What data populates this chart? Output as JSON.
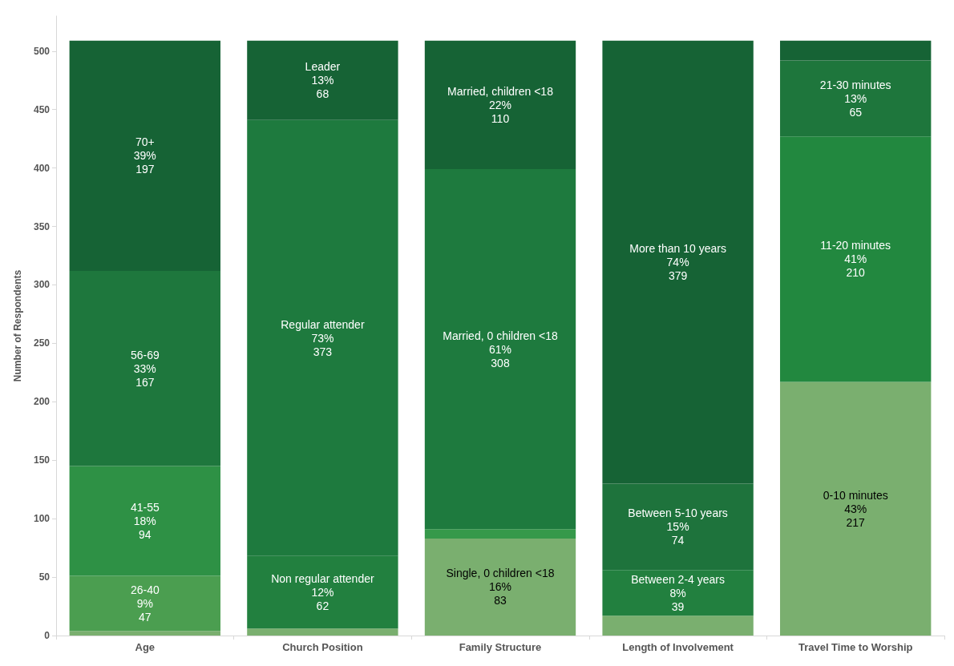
{
  "chart_data": {
    "type": "bar",
    "stacked": true,
    "ylabel": "Number of Respondents",
    "categories": [
      "Age",
      "Church Position",
      "Family Structure",
      "Length of Involvement",
      "Travel Time to Worship"
    ],
    "ylim": [
      0,
      530
    ],
    "yticks": [
      0,
      50,
      100,
      150,
      200,
      250,
      300,
      350,
      400,
      450,
      500
    ],
    "grid": false,
    "series": [
      {
        "values": [
          4,
          6,
          83,
          17,
          217
        ],
        "colors": [
          "#7aaf6f",
          "#7aaf6f",
          "#7aaf6f",
          "#7aaf6f",
          "#7aaf6f"
        ],
        "value_labels": [
          null,
          null,
          "Single, 0 children <18\n16%\n83",
          null,
          "0-10 minutes\n43%\n217"
        ]
      },
      {
        "values": [
          47,
          62,
          8,
          39,
          210
        ],
        "colors": [
          "#4b9e50",
          "#22803f",
          "#36994a",
          "#22803f",
          "#22883f"
        ],
        "value_labels": [
          "26-40\n9%\n47",
          "Non regular attender\n12%\n62",
          null,
          "Between 2-4 years\n8%\n39",
          "11-20 minutes\n41%\n210"
        ]
      },
      {
        "values": [
          94,
          373,
          308,
          74,
          65
        ],
        "colors": [
          "#2e9145",
          "#1e7a3e",
          "#1e7a3e",
          "#1e733c",
          "#1e763c"
        ],
        "value_labels": [
          "41-55\n18%\n94",
          "Regular attender\n73%\n373",
          "Married, 0 children <18\n61%\n308",
          "Between 5-10 years\n15%\n74",
          "21-30 minutes\n13%\n65"
        ]
      },
      {
        "values": [
          167,
          68,
          110,
          379,
          17
        ],
        "colors": [
          "#1e773d",
          "#166335",
          "#166335",
          "#166335",
          "#166335"
        ],
        "value_labels": [
          "56-69\n33%\n167",
          "Leader\n13%\n68",
          "Married, children <18\n22%\n110",
          "More than 10 years\n74%\n379",
          null
        ]
      },
      {
        "values": [
          197,
          null,
          null,
          null,
          null
        ],
        "colors": [
          "#166335",
          "#166335",
          "#166335",
          "#166335",
          "#166335"
        ],
        "value_labels": [
          "70+\n39%\n197",
          null,
          null,
          null,
          null
        ]
      }
    ]
  }
}
